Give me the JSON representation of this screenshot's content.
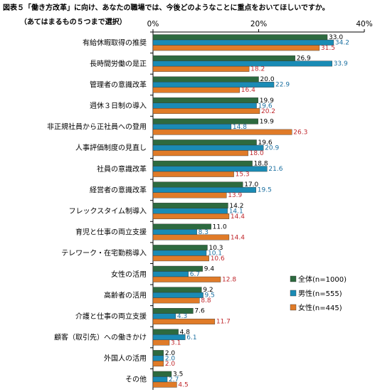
{
  "title": "図表５「働き方改革」に向け、あなたの職場では、今後どのようなことに重点をおいてほしいですか。",
  "subtitle": "（あてはまるもの５つまで選択）",
  "chart_data": {
    "type": "bar",
    "orientation": "horizontal",
    "title": "図表５「働き方改革」に向け、あなたの職場では、今後どのようなことに重点をおいてほしいですか。",
    "subtitle": "（あてはまるもの５つまで選択）",
    "xlim": [
      0,
      40
    ],
    "ticks": [
      "0%",
      "20%",
      "40%"
    ],
    "tick_values": [
      0,
      20,
      40
    ],
    "legend_position": "right",
    "categories": [
      "有給休暇取得の推奨",
      "長時間労働の是正",
      "管理者の意識改革",
      "週休３日制の導入",
      "非正規社員から正社員への登用",
      "人事評価制度の見直し",
      "社員の意識改革",
      "経営者の意識改革",
      "フレックスタイム制導入",
      "育児と仕事の両立支援",
      "テレワーク・在宅勤務導入",
      "女性の活用",
      "高齢者の活用",
      "介護と仕事の両立支援",
      "顧客（取引先）への働きかけ",
      "外国人の活用",
      "その他"
    ],
    "series": [
      {
        "name": "全体(n=1000)",
        "color": "#2d6a3f",
        "label_color": "#000000",
        "values": [
          33.0,
          26.9,
          20.0,
          19.9,
          19.9,
          19.6,
          18.8,
          17.0,
          14.2,
          11.0,
          10.3,
          9.4,
          9.2,
          7.6,
          4.8,
          2.0,
          3.5
        ]
      },
      {
        "name": "男性(n=555)",
        "color": "#1a8bb5",
        "label_color": "#1a6fa0",
        "values": [
          34.2,
          33.9,
          22.9,
          19.6,
          14.8,
          20.9,
          21.6,
          19.5,
          14.1,
          8.3,
          10.1,
          6.7,
          9.5,
          4.3,
          6.1,
          2.0,
          2.7
        ]
      },
      {
        "name": "女性(n=445)",
        "color": "#e07b28",
        "label_color": "#c0282d",
        "values": [
          31.5,
          18.2,
          16.4,
          20.2,
          26.3,
          18.0,
          15.3,
          13.9,
          14.4,
          14.4,
          10.6,
          12.8,
          8.8,
          11.7,
          3.1,
          2.0,
          4.5
        ]
      }
    ]
  }
}
